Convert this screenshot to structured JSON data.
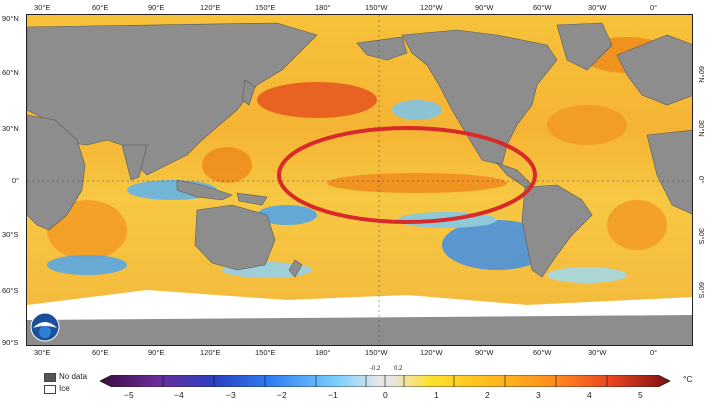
{
  "map": {
    "lon_labels_top": [
      "30°E",
      "60°E",
      "90°E",
      "120°E",
      "150°E",
      "180°",
      "150°W",
      "120°W",
      "90°W",
      "60°W",
      "30°W",
      "0°"
    ],
    "lon_labels_bottom": [
      "30°E",
      "60°E",
      "90°E",
      "120°E",
      "150°E",
      "180°",
      "150°W",
      "120°W",
      "90°W",
      "60°W",
      "30°W",
      "0°"
    ],
    "lat_labels_left": [
      "90°N",
      "60°N",
      "30°N",
      "0°",
      "30°S",
      "60°S",
      "90°S"
    ],
    "lat_labels_right": [
      "60°N",
      "30°N",
      "0°",
      "30°S",
      "60°S"
    ],
    "highlight": "red-ellipse-equatorial-pacific",
    "colors": {
      "land": "#8d8d8d",
      "ice": "#ffffff",
      "ellipse": "#d82a2a"
    }
  },
  "logo": {
    "text": "NOAA"
  },
  "legend": {
    "no_data": "No data",
    "ice": "Ice"
  },
  "colorbar": {
    "ticks": [
      "−5",
      "−4",
      "−3",
      "−2",
      "−1",
      "0",
      "1",
      "2",
      "3",
      "4",
      "5"
    ],
    "small_ticks": [
      "-0.2",
      "0.2"
    ],
    "unit": "°C",
    "colors": [
      "#4b0a4f",
      "#7b3fa6",
      "#2c3fc4",
      "#2f7ff2",
      "#7fd2ff",
      "#e6e6e6",
      "#ffe12b",
      "#ffb61e",
      "#ff8a1d",
      "#e8421e",
      "#9c1717"
    ]
  }
}
